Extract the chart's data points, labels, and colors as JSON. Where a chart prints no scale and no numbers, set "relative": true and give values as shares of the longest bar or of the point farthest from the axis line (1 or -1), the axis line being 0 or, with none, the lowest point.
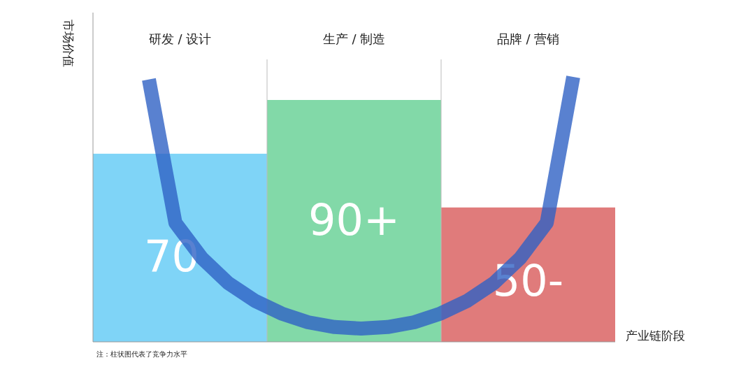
{
  "chart_data": [
    {
      "type": "bar",
      "categories": [
        "研发 / 设计",
        "生产 / 制造",
        "品牌 / 营销"
      ],
      "colors": [
        "#7fd4f7",
        "#82d9a8",
        "#e07b7b"
      ],
      "values": [
        70,
        90,
        50
      ],
      "value_labels": [
        "70",
        "90+",
        "50-"
      ],
      "ylabel": "市场价值",
      "xlabel": "产业链阶段",
      "grid": "x",
      "tick_labels": "x",
      "annotations": [
        "注：柱状图代表了竞争力水平"
      ]
    },
    {
      "type": "line",
      "relative": true,
      "categories": [
        null,
        null,
        null,
        null,
        null,
        null,
        null,
        null,
        null,
        null,
        null,
        null,
        null,
        null,
        null,
        null,
        null
      ],
      "series": [
        {
          "color": "#2f62c4",
          "values": [
            0.99,
            0.42,
            0.28,
            0.18,
            0.11,
            0.06,
            0.025,
            0.006,
            0,
            0.006,
            0.025,
            0.06,
            0.11,
            0.18,
            0.28,
            0.42,
            1.0
          ]
        }
      ]
    }
  ]
}
